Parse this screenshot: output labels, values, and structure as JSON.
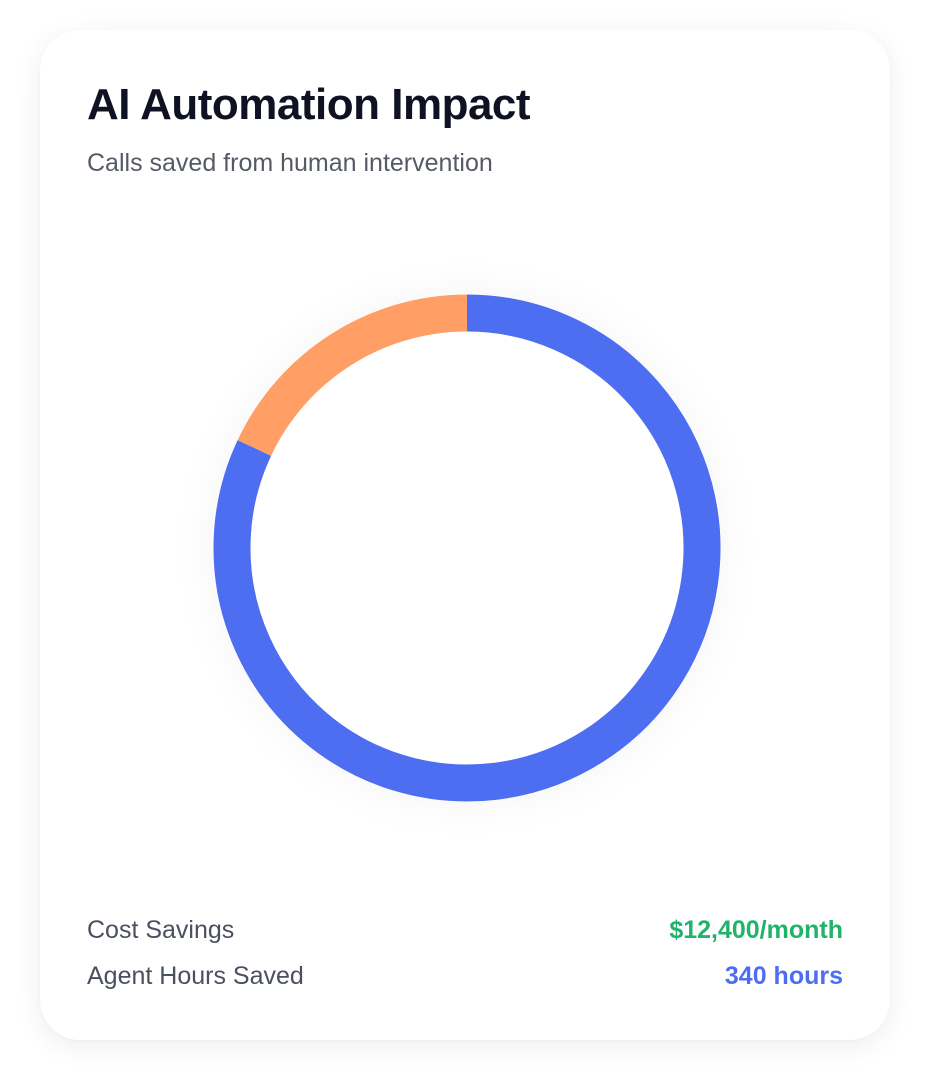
{
  "card": {
    "title": "AI Automation Impact",
    "subtitle": "Calls saved from human intervention"
  },
  "chart_data": {
    "type": "pie",
    "style": "donut",
    "slices": [
      {
        "value": 82,
        "color": "#4e6ef2"
      },
      {
        "value": 18,
        "color": "#ff9f66"
      }
    ]
  },
  "stats": [
    {
      "label": "Cost Savings",
      "value": "$12,400/month",
      "color": "#22b36b"
    },
    {
      "label": "Agent Hours Saved",
      "value": "340 hours",
      "color": "#4e6ef2"
    }
  ]
}
